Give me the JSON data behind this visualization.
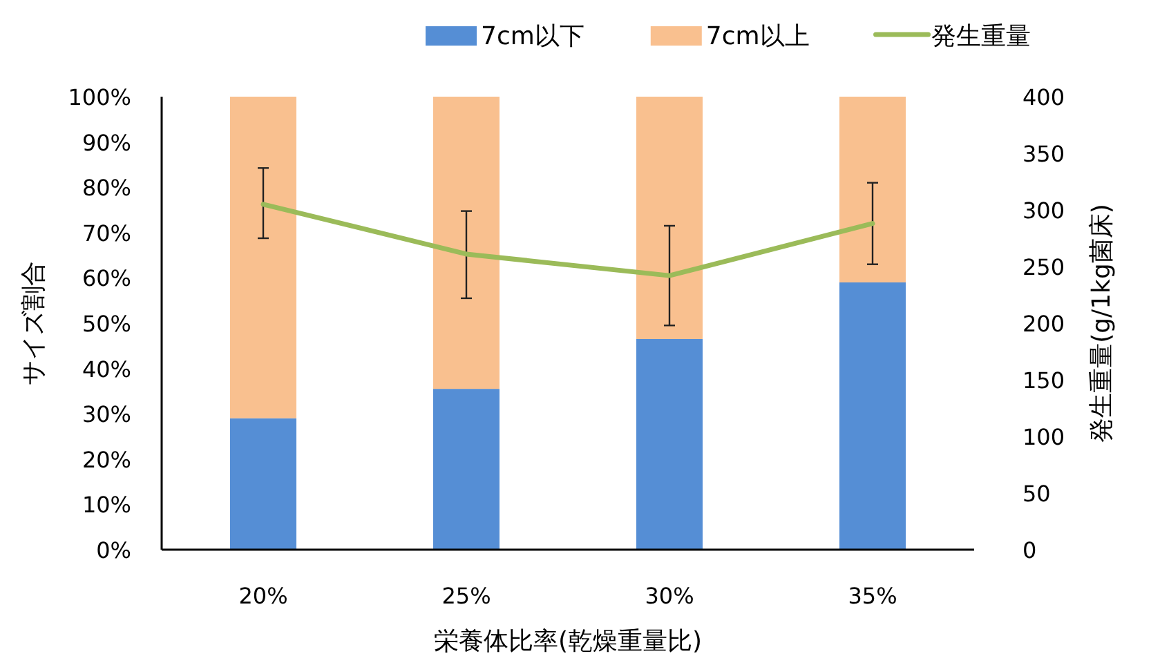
{
  "chart_data": {
    "type": "bar",
    "stacked": true,
    "xlabel": "栄養体比率(乾燥重量比)",
    "ylabel": "サイズ割合",
    "y2label": "発生重量(g/1kg菌床)",
    "categories": [
      "20%",
      "25%",
      "30%",
      "35%"
    ],
    "series": [
      {
        "name": "7cm以下",
        "color": "#558ed5",
        "values": [
          29,
          35.5,
          46.5,
          59
        ]
      },
      {
        "name": "7cm以上",
        "color": "#f9c08f",
        "values": [
          71,
          64.5,
          53.5,
          41
        ]
      },
      {
        "name": "発生重量",
        "type": "line",
        "axis": "y2",
        "color": "#9bbb59",
        "values": [
          305,
          261,
          242,
          288
        ],
        "errors": [
          [
            275,
            337
          ],
          [
            222,
            299
          ],
          [
            198,
            286
          ],
          [
            252,
            324
          ]
        ]
      }
    ],
    "ylim": [
      0,
      100
    ],
    "yticks": [
      {
        "value": 0,
        "label": "0%"
      },
      {
        "value": 10,
        "label": "10%"
      },
      {
        "value": 20,
        "label": "20%"
      },
      {
        "value": 30,
        "label": "30%"
      },
      {
        "value": 40,
        "label": "40%"
      },
      {
        "value": 50,
        "label": "50%"
      },
      {
        "value": 60,
        "label": "60%"
      },
      {
        "value": 70,
        "label": "70%"
      },
      {
        "value": 80,
        "label": "80%"
      },
      {
        "value": 90,
        "label": "90%"
      },
      {
        "value": 100,
        "label": "100%"
      }
    ],
    "y2lim": [
      0,
      400
    ],
    "y2ticks": [
      0,
      50,
      100,
      150,
      200,
      250,
      300,
      350,
      400
    ],
    "legend": "top",
    "grid": false
  }
}
